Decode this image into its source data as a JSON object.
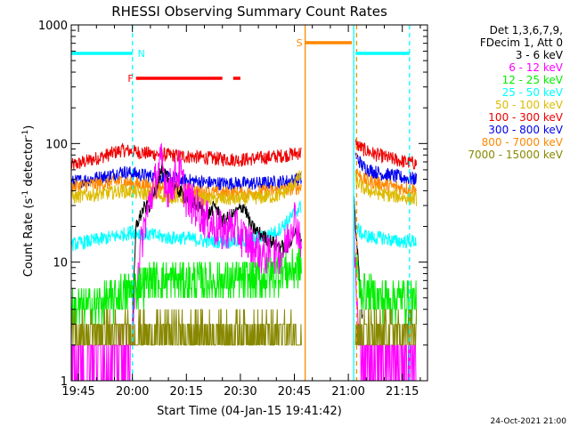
{
  "chart_data": {
    "type": "line",
    "title": "RHESSI Observing Summary Count Rates",
    "xlabel": "Start Time (04-Jan-15 19:41:42)",
    "ylabel_main": "Count Rate (s",
    "ylabel_sup1": "-1",
    "ylabel_mid": " detector",
    "ylabel_sup2": "-1",
    "ylabel_end": ")",
    "y_scale": "log",
    "ylim": [
      1,
      1000
    ],
    "xlim_minutes": [
      -2,
      97
    ],
    "x_ticks": [
      {
        "t": 0,
        "label": "19:45"
      },
      {
        "t": 15,
        "label": "20:00"
      },
      {
        "t": 30,
        "label": "20:15"
      },
      {
        "t": 45,
        "label": "20:30"
      },
      {
        "t": 60,
        "label": "20:45"
      },
      {
        "t": 75,
        "label": "21:00"
      },
      {
        "t": 90,
        "label": "21:15"
      }
    ],
    "y_ticks": [
      {
        "v": 1,
        "label": "1"
      },
      {
        "v": 10,
        "label": "10"
      },
      {
        "v": 100,
        "label": "100"
      },
      {
        "v": 1000,
        "label": "1000"
      }
    ],
    "legend": {
      "header_line1": "Det 1,3,6,7,9,",
      "header_line2": "FDecim 1, Att 0",
      "placement": "right",
      "entries": [
        {
          "label": "3 - 6 keV",
          "color": "#000000"
        },
        {
          "label": "6 - 12 keV",
          "color": "#ff00ff"
        },
        {
          "label": "12 - 25 keV",
          "color": "#00ee00"
        },
        {
          "label": "25 - 50 keV",
          "color": "#00ffff"
        },
        {
          "label": "50 - 100 keV",
          "color": "#ddbb00"
        },
        {
          "label": "100 - 300 keV",
          "color": "#ee0000"
        },
        {
          "label": "300 - 800 keV",
          "color": "#0000ee"
        },
        {
          "label": "800 - 7000 keV",
          "color": "#ff8800"
        },
        {
          "label": "7000 - 15000 keV",
          "color": "#888800"
        }
      ]
    },
    "gaps_minutes": [
      [
        62.5,
        76.5
      ]
    ],
    "series": [
      {
        "color": "#ee0000",
        "before": [
          [
            -2,
            65
          ],
          [
            3,
            72
          ],
          [
            8,
            80
          ],
          [
            12,
            88
          ],
          [
            15,
            86
          ],
          [
            20,
            82
          ],
          [
            25,
            80
          ],
          [
            30,
            78
          ],
          [
            35,
            76
          ],
          [
            40,
            74
          ],
          [
            45,
            73
          ],
          [
            50,
            75
          ],
          [
            55,
            78
          ],
          [
            58,
            80
          ],
          [
            62,
            84
          ]
        ],
        "after": [
          [
            77,
            100
          ],
          [
            79,
            90
          ],
          [
            82,
            82
          ],
          [
            85,
            77
          ],
          [
            88,
            73
          ],
          [
            91,
            70
          ],
          [
            94,
            68
          ]
        ]
      },
      {
        "color": "#0000ee",
        "before": [
          [
            -2,
            47
          ],
          [
            3,
            50
          ],
          [
            8,
            53
          ],
          [
            12,
            58
          ],
          [
            15,
            56
          ],
          [
            20,
            53
          ],
          [
            25,
            51
          ],
          [
            30,
            49
          ],
          [
            35,
            47
          ],
          [
            40,
            46
          ],
          [
            45,
            46
          ],
          [
            50,
            46
          ],
          [
            55,
            47
          ],
          [
            58,
            48
          ],
          [
            62,
            50
          ]
        ],
        "after": [
          [
            77,
            80
          ],
          [
            79,
            64
          ],
          [
            82,
            58
          ],
          [
            85,
            55
          ],
          [
            88,
            53
          ],
          [
            91,
            51
          ],
          [
            94,
            50
          ]
        ]
      },
      {
        "color": "#ff8800",
        "before": [
          [
            -2,
            43
          ],
          [
            3,
            45
          ],
          [
            8,
            46
          ],
          [
            12,
            48
          ],
          [
            15,
            46
          ],
          [
            20,
            44
          ],
          [
            25,
            42
          ],
          [
            30,
            40
          ],
          [
            35,
            39
          ],
          [
            40,
            38
          ],
          [
            45,
            38
          ],
          [
            50,
            39
          ],
          [
            55,
            40
          ],
          [
            58,
            41
          ],
          [
            62,
            43
          ]
        ],
        "after": [
          [
            77,
            60
          ],
          [
            79,
            50
          ],
          [
            82,
            47
          ],
          [
            85,
            45
          ],
          [
            88,
            43
          ],
          [
            91,
            42
          ],
          [
            94,
            41
          ]
        ]
      },
      {
        "color": "#ddbb00",
        "before": [
          [
            -2,
            35
          ],
          [
            3,
            37
          ],
          [
            8,
            38
          ],
          [
            12,
            40
          ],
          [
            15,
            39
          ],
          [
            20,
            37
          ],
          [
            25,
            36
          ],
          [
            30,
            35
          ],
          [
            35,
            34
          ],
          [
            40,
            34
          ],
          [
            45,
            34
          ],
          [
            50,
            35
          ],
          [
            55,
            36
          ],
          [
            58,
            40
          ],
          [
            62,
            55
          ]
        ],
        "after": [
          [
            77,
            50
          ],
          [
            79,
            42
          ],
          [
            82,
            39
          ],
          [
            85,
            37
          ],
          [
            88,
            36
          ],
          [
            91,
            35
          ],
          [
            94,
            34
          ]
        ]
      },
      {
        "color": "#00ffff",
        "before": [
          [
            -2,
            14
          ],
          [
            3,
            15
          ],
          [
            8,
            16
          ],
          [
            12,
            17
          ],
          [
            15,
            18
          ],
          [
            20,
            17
          ],
          [
            25,
            16
          ],
          [
            30,
            16
          ],
          [
            35,
            15
          ],
          [
            40,
            15
          ],
          [
            45,
            15
          ],
          [
            50,
            16
          ],
          [
            55,
            18
          ],
          [
            58,
            22
          ],
          [
            62,
            30
          ]
        ],
        "after": [
          [
            77,
            20
          ],
          [
            79,
            17
          ],
          [
            82,
            16
          ],
          [
            85,
            16
          ],
          [
            88,
            15
          ],
          [
            91,
            15
          ],
          [
            94,
            15
          ]
        ]
      },
      {
        "color": "#000000",
        "before": [
          [
            15,
            3
          ],
          [
            16,
            20
          ],
          [
            18,
            28
          ],
          [
            20,
            30
          ],
          [
            23,
            60
          ],
          [
            26,
            45
          ],
          [
            30,
            35
          ],
          [
            33,
            30
          ],
          [
            36,
            25
          ],
          [
            38,
            30
          ],
          [
            40,
            22
          ],
          [
            43,
            25
          ],
          [
            46,
            30
          ],
          [
            48,
            20
          ],
          [
            52,
            16
          ],
          [
            55,
            14
          ],
          [
            58,
            13
          ],
          [
            60,
            18
          ],
          [
            62,
            15
          ]
        ],
        "after": [
          [
            76.5,
            40
          ],
          [
            77,
            20
          ],
          [
            78,
            8
          ],
          [
            79,
            3
          ]
        ]
      },
      {
        "color": "#ff00ff",
        "before": [
          [
            -2,
            1.6
          ],
          [
            8,
            1.6
          ],
          [
            15,
            1.8
          ],
          [
            16,
            7
          ],
          [
            18,
            18
          ],
          [
            20,
            35
          ],
          [
            23,
            70
          ],
          [
            25,
            40
          ],
          [
            28,
            60
          ],
          [
            30,
            35
          ],
          [
            33,
            28
          ],
          [
            36,
            22
          ],
          [
            40,
            18
          ],
          [
            43,
            20
          ],
          [
            46,
            16
          ],
          [
            50,
            12
          ],
          [
            54,
            11
          ],
          [
            57,
            12
          ],
          [
            60,
            25
          ],
          [
            62,
            14
          ]
        ],
        "after": [
          [
            76.5,
            20
          ],
          [
            77,
            8
          ],
          [
            78,
            2
          ],
          [
            80,
            1.6
          ],
          [
            94,
            1.6
          ]
        ]
      },
      {
        "color": "#00ee00",
        "before": [
          [
            -2,
            4
          ],
          [
            5,
            4.2
          ],
          [
            10,
            5
          ],
          [
            15,
            6
          ],
          [
            20,
            7
          ],
          [
            30,
            7
          ],
          [
            40,
            7
          ],
          [
            50,
            7
          ],
          [
            55,
            8
          ],
          [
            62,
            9
          ]
        ],
        "after": [
          [
            77,
            12
          ],
          [
            78,
            6
          ],
          [
            82,
            5
          ],
          [
            88,
            5
          ],
          [
            94,
            5
          ]
        ]
      },
      {
        "color": "#888800",
        "before": [
          [
            -2,
            2.5
          ],
          [
            5,
            2.5
          ],
          [
            10,
            2.5
          ],
          [
            15,
            2.5
          ],
          [
            20,
            2.5
          ],
          [
            30,
            2.5
          ],
          [
            40,
            2.5
          ],
          [
            50,
            2.5
          ],
          [
            55,
            2.5
          ],
          [
            62,
            2.5
          ]
        ],
        "after": [
          [
            77,
            2.5
          ],
          [
            82,
            2.5
          ],
          [
            88,
            2.5
          ],
          [
            94,
            2.5
          ]
        ]
      }
    ],
    "state_bars": [
      {
        "label": "N",
        "color": "#00ffff",
        "segments": [
          [
            -2,
            15
          ]
        ],
        "level": 0.92
      },
      {
        "label": "",
        "color": "#00ffff",
        "segments": [
          [
            77,
            92
          ]
        ],
        "level": 0.92
      },
      {
        "label": "F",
        "color": "#ff0000",
        "segments": [
          [
            16,
            40
          ],
          [
            43,
            45
          ]
        ],
        "level": 0.85
      },
      {
        "label": "S",
        "color": "#ff8800",
        "segments": [
          [
            63,
            76
          ]
        ],
        "level": 0.95
      }
    ],
    "vlines": [
      {
        "t": 15,
        "color": "#00ffff",
        "style": "dashed"
      },
      {
        "t": 92,
        "color": "#00ffff",
        "style": "dashed"
      },
      {
        "t": 63,
        "color": "#ff8800",
        "style": "solid"
      },
      {
        "t": 76.5,
        "color": "#00ffff",
        "style": "solid"
      },
      {
        "t": 77.3,
        "color": "#ff8800",
        "style": "dashed"
      }
    ],
    "footer_date": "24-Oct-2021 21:00"
  }
}
